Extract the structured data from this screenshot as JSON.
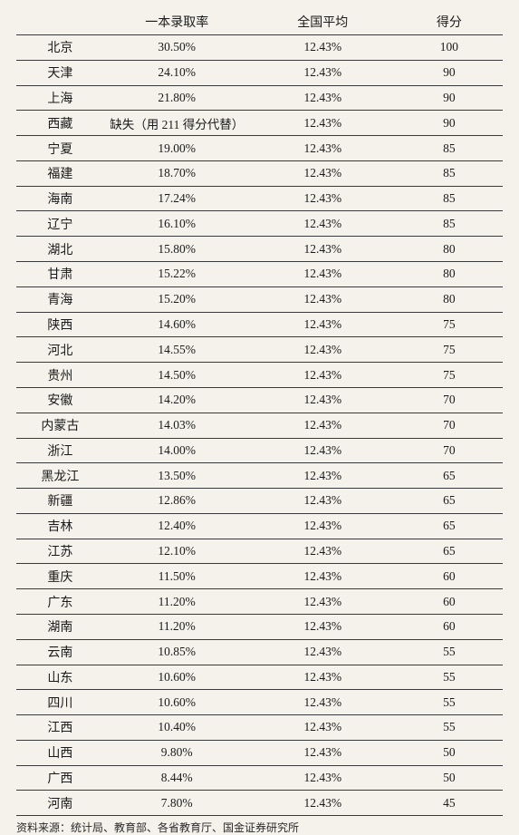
{
  "columns": [
    "",
    "一本录取率",
    "全国平均",
    "得分"
  ],
  "column_widths": [
    "18%",
    "30%",
    "30%",
    "22%"
  ],
  "rows": [
    [
      "北京",
      "30.50%",
      "12.43%",
      "100"
    ],
    [
      "天津",
      "24.10%",
      "12.43%",
      "90"
    ],
    [
      "上海",
      "21.80%",
      "12.43%",
      "90"
    ],
    [
      "西藏",
      "缺失（用 211 得分代替）",
      "12.43%",
      "90"
    ],
    [
      "宁夏",
      "19.00%",
      "12.43%",
      "85"
    ],
    [
      "福建",
      "18.70%",
      "12.43%",
      "85"
    ],
    [
      "海南",
      "17.24%",
      "12.43%",
      "85"
    ],
    [
      "辽宁",
      "16.10%",
      "12.43%",
      "85"
    ],
    [
      "湖北",
      "15.80%",
      "12.43%",
      "80"
    ],
    [
      "甘肃",
      "15.22%",
      "12.43%",
      "80"
    ],
    [
      "青海",
      "15.20%",
      "12.43%",
      "80"
    ],
    [
      "陕西",
      "14.60%",
      "12.43%",
      "75"
    ],
    [
      "河北",
      "14.55%",
      "12.43%",
      "75"
    ],
    [
      "贵州",
      "14.50%",
      "12.43%",
      "75"
    ],
    [
      "安徽",
      "14.20%",
      "12.43%",
      "70"
    ],
    [
      "内蒙古",
      "14.03%",
      "12.43%",
      "70"
    ],
    [
      "浙江",
      "14.00%",
      "12.43%",
      "70"
    ],
    [
      "黑龙江",
      "13.50%",
      "12.43%",
      "65"
    ],
    [
      "新疆",
      "12.86%",
      "12.43%",
      "65"
    ],
    [
      "吉林",
      "12.40%",
      "12.43%",
      "65"
    ],
    [
      "江苏",
      "12.10%",
      "12.43%",
      "65"
    ],
    [
      "重庆",
      "11.50%",
      "12.43%",
      "60"
    ],
    [
      "广东",
      "11.20%",
      "12.43%",
      "60"
    ],
    [
      "湖南",
      "11.20%",
      "12.43%",
      "60"
    ],
    [
      "云南",
      "10.85%",
      "12.43%",
      "55"
    ],
    [
      "山东",
      "10.60%",
      "12.43%",
      "55"
    ],
    [
      "四川",
      "10.60%",
      "12.43%",
      "55"
    ],
    [
      "江西",
      "10.40%",
      "12.43%",
      "55"
    ],
    [
      "山西",
      "9.80%",
      "12.43%",
      "50"
    ],
    [
      "广西",
      "8.44%",
      "12.43%",
      "50"
    ],
    [
      "河南",
      "7.80%",
      "12.43%",
      "45"
    ]
  ],
  "footnote": "资料来源：统计局、教育部、各省教育厅、国金证券研究所",
  "style": {
    "background_color": "#f4f2eb",
    "border_color": "#3a3a3a",
    "text_color": "#1a1a1a",
    "header_fontsize": 14,
    "body_fontsize": 13.5,
    "footnote_fontsize": 12
  }
}
